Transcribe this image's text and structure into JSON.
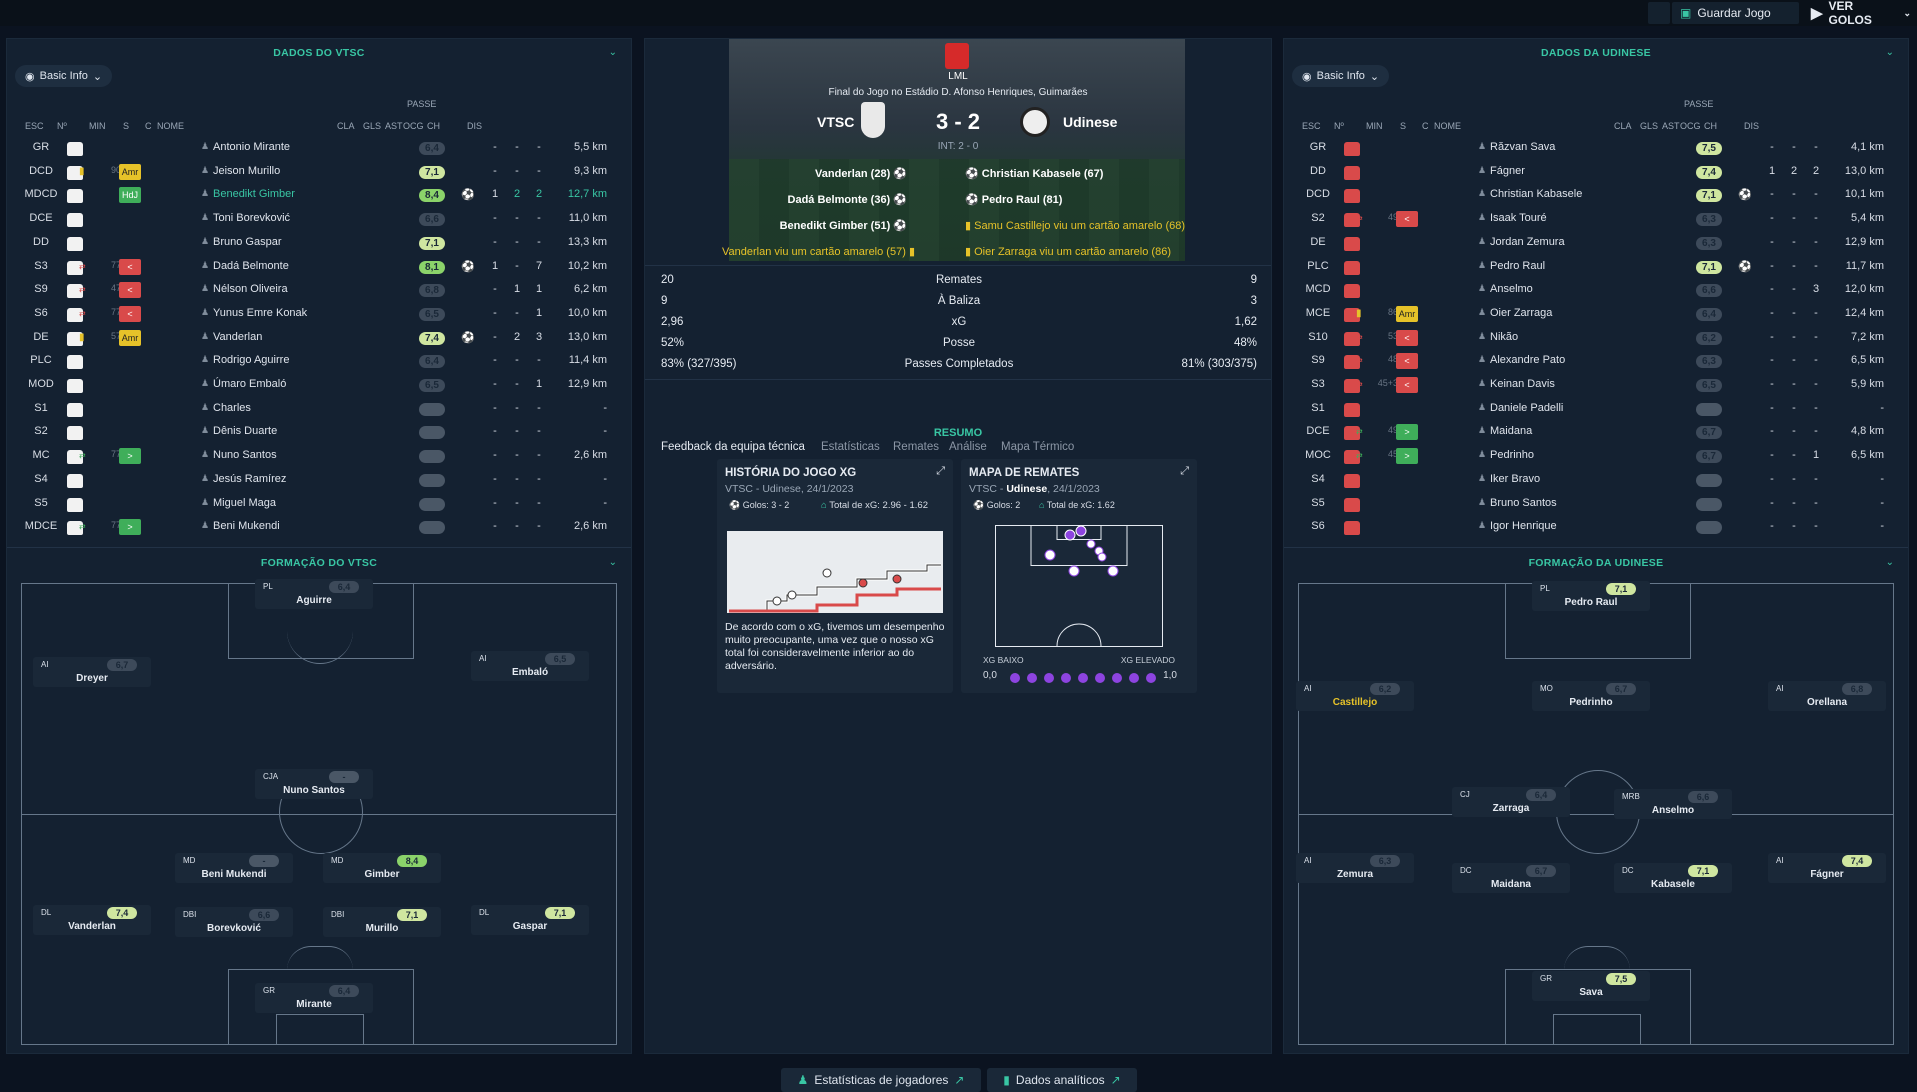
{
  "topbar": {
    "save_label": "Guardar Jogo",
    "goals_label": "VER GOLOS"
  },
  "left": {
    "title": "DADOS DO VTSC",
    "basic": "Basic Info",
    "headers": {
      "esc": "ESC",
      "num": "Nº",
      "min": "MIN",
      "s": "S",
      "c": "C",
      "nome": "NOME",
      "passe": "PASSE",
      "cla": "CLA",
      "gls": "GLS",
      "ast": "AST",
      "ocg": "OCG",
      "ch": "CH",
      "dis": "DIS"
    },
    "players": [
      {
        "pos": "GR",
        "num": "",
        "min": "",
        "badge": "",
        "name": "Antonio Mirante",
        "rating": "6,4",
        "gls": "",
        "ast": "-",
        "ocg": "-",
        "ch": "-",
        "dis": "5,5 km"
      },
      {
        "pos": "DCD",
        "num": "",
        "min": "90",
        "badge": "Amr",
        "name": "Jeison Murillo",
        "rating": "7,1",
        "gls": "",
        "ast": "-",
        "ocg": "-",
        "ch": "-",
        "dis": "9,3 km"
      },
      {
        "pos": "MDCD",
        "num": "",
        "min": "",
        "badge": "HdJ",
        "name": "Benedikt Gimber",
        "rating": "8,4",
        "gls": "⚽",
        "ast": "1",
        "ocg": "2",
        "ch": "2",
        "dis": "12,7 km"
      },
      {
        "pos": "DCE",
        "num": "",
        "min": "",
        "badge": "",
        "name": "Toni Borevković",
        "rating": "6,6",
        "gls": "",
        "ast": "-",
        "ocg": "-",
        "ch": "-",
        "dis": "11,0 km"
      },
      {
        "pos": "DD",
        "num": "",
        "min": "",
        "badge": "",
        "name": "Bruno Gaspar",
        "rating": "7,1",
        "gls": "",
        "ast": "-",
        "ocg": "-",
        "ch": "-",
        "dis": "13,3 km"
      },
      {
        "pos": "S3",
        "num": "",
        "min": "77",
        "badge": "<",
        "name": "Dadá Belmonte",
        "rating": "8,1",
        "gls": "⚽",
        "ast": "1",
        "ocg": "-",
        "ch": "7",
        "dis": "10,2 km"
      },
      {
        "pos": "S9",
        "num": "",
        "min": "47",
        "badge": "<",
        "name": "Nélson Oliveira",
        "rating": "6,8",
        "gls": "",
        "ast": "-",
        "ocg": "1",
        "ch": "1",
        "dis": "6,2 km"
      },
      {
        "pos": "S6",
        "num": "",
        "min": "77",
        "badge": "<",
        "name": "Yunus Emre Konak",
        "rating": "6,5",
        "gls": "",
        "ast": "-",
        "ocg": "-",
        "ch": "1",
        "dis": "10,0 km"
      },
      {
        "pos": "DE",
        "num": "",
        "min": "57",
        "badge": "Amr",
        "name": "Vanderlan",
        "rating": "7,4",
        "gls": "⚽",
        "ast": "-",
        "ocg": "2",
        "ch": "3",
        "dis": "13,0 km"
      },
      {
        "pos": "PLC",
        "num": "",
        "min": "",
        "badge": "",
        "name": "Rodrigo Aguirre",
        "rating": "6,4",
        "gls": "",
        "ast": "-",
        "ocg": "-",
        "ch": "-",
        "dis": "11,4 km"
      },
      {
        "pos": "MOD",
        "num": "",
        "min": "",
        "badge": "",
        "name": "Úmaro Embaló",
        "rating": "6,5",
        "gls": "",
        "ast": "-",
        "ocg": "-",
        "ch": "1",
        "dis": "12,9 km"
      },
      {
        "pos": "S1",
        "num": "",
        "min": "",
        "badge": "",
        "name": "Charles",
        "rating": "-",
        "gls": "",
        "ast": "-",
        "ocg": "-",
        "ch": "-",
        "dis": "-"
      },
      {
        "pos": "S2",
        "num": "",
        "min": "",
        "badge": "",
        "name": "Dênis Duarte",
        "rating": "-",
        "gls": "",
        "ast": "-",
        "ocg": "-",
        "ch": "-",
        "dis": "-"
      },
      {
        "pos": "MC",
        "num": "",
        "min": "77",
        "badge": ">",
        "name": "Nuno Santos",
        "rating": "-",
        "gls": "",
        "ast": "-",
        "ocg": "-",
        "ch": "-",
        "dis": "2,6 km"
      },
      {
        "pos": "S4",
        "num": "",
        "min": "",
        "badge": "",
        "name": "Jesús Ramírez",
        "rating": "-",
        "gls": "",
        "ast": "-",
        "ocg": "-",
        "ch": "-",
        "dis": "-"
      },
      {
        "pos": "S5",
        "num": "",
        "min": "",
        "badge": "",
        "name": "Miguel Maga",
        "rating": "-",
        "gls": "",
        "ast": "-",
        "ocg": "-",
        "ch": "-",
        "dis": "-"
      },
      {
        "pos": "MDCE",
        "num": "",
        "min": "77",
        "badge": ">",
        "name": "Beni Mukendi",
        "rating": "-",
        "gls": "",
        "ast": "-",
        "ocg": "-",
        "ch": "-",
        "dis": "2,6 km"
      }
    ],
    "formation_title": "FORMAÇÃO DO VTSC",
    "formation": [
      {
        "pos": "PL",
        "rating": "6,4",
        "name": "Aguirre"
      },
      {
        "pos": "AI",
        "rating": "6,7",
        "name": "Dreyer"
      },
      {
        "pos": "AI",
        "rating": "6,5",
        "name": "Embaló"
      },
      {
        "pos": "CJA",
        "rating": "-",
        "name": "Nuno Santos"
      },
      {
        "pos": "MD",
        "rating": "-",
        "name": "Beni Mukendi"
      },
      {
        "pos": "MD",
        "rating": "8,4",
        "name": "Gimber"
      },
      {
        "pos": "DL",
        "rating": "7,4",
        "name": "Vanderlan"
      },
      {
        "pos": "DBI",
        "rating": "6,6",
        "name": "Borevković"
      },
      {
        "pos": "DBI",
        "rating": "7,1",
        "name": "Murillo"
      },
      {
        "pos": "DL",
        "rating": "7,1",
        "name": "Gaspar"
      },
      {
        "pos": "GR",
        "rating": "6,4",
        "name": "Mirante"
      }
    ]
  },
  "center": {
    "league": "LML",
    "venue": "Final do Jogo no Estádio D. Afonso Henriques, Guimarães",
    "home": "VTSC",
    "away": "Udinese",
    "score": "3 - 2",
    "ht": "INT: 2 - 0",
    "home_events": [
      "Vanderlan (28)",
      "Dadá Belmonte (36)",
      "Benedikt Gimber (51)",
      "Vanderlan viu um cartão amarelo (57)"
    ],
    "away_events": [
      "Christian Kabasele (67)",
      "Pedro Raul (81)",
      "Samu Castillejo viu um cartão amarelo (68)",
      "Oier Zarraga viu um cartão amarelo (86)"
    ],
    "stats": [
      {
        "home": "20",
        "label": "Remates",
        "away": "9"
      },
      {
        "home": "9",
        "label": "À Baliza",
        "away": "3"
      },
      {
        "home": "2,96",
        "label": "xG",
        "away": "1,62"
      },
      {
        "home": "52%",
        "label": "Posse",
        "away": "48%"
      },
      {
        "home": "83% (327/395)",
        "label": "Passes Completados",
        "away": "81% (303/375)"
      }
    ],
    "tabs": [
      "Feedback da equipa técnica",
      "Estatísticas",
      "Remates",
      "Análise",
      "Mapa Térmico"
    ],
    "resumo": "RESUMO",
    "xg_card": {
      "title": "HISTÓRIA DO JOGO XG",
      "sub": "VTSC - Udinese, 24/1/2023",
      "goals": "Golos: 3 - 2",
      "total": "Total de xG: 2.96 - 1.62",
      "text": "De acordo com o xG, tivemos um desempenho muito preocupante, uma vez que o nosso xG total foi consideravelmente inferior ao do adversário."
    },
    "shot_card": {
      "title": "MAPA DE REMATES",
      "sub_a": "VTSC - ",
      "sub_b": "Udinese",
      "sub_c": ", 24/1/2023",
      "goals": "Golos: 2",
      "total": "Total de xG: 1.62",
      "low": "XG BAIXO",
      "high": "XG ELEVADO",
      "min": "0,0",
      "max": "1,0"
    },
    "bottom": [
      "Estatísticas de jogadores",
      "Dados analíticos"
    ]
  },
  "right": {
    "title": "DADOS DA UDINESE",
    "basic": "Basic Info",
    "players": [
      {
        "pos": "GR",
        "min": "",
        "badge": "",
        "name": "Răzvan Sava",
        "rating": "7,5",
        "gls": "",
        "ast": "-",
        "ocg": "-",
        "ch": "-",
        "dis": "4,1 km"
      },
      {
        "pos": "DD",
        "min": "",
        "badge": "",
        "name": "Fágner",
        "rating": "7,4",
        "gls": "",
        "ast": "1",
        "ocg": "2",
        "ch": "2",
        "dis": "13,0 km"
      },
      {
        "pos": "DCD",
        "min": "",
        "badge": "",
        "name": "Christian Kabasele",
        "rating": "7,1",
        "gls": "⚽",
        "ast": "-",
        "ocg": "-",
        "ch": "-",
        "dis": "10,1 km"
      },
      {
        "pos": "S2",
        "min": "49",
        "badge": "<",
        "name": "Isaak Touré",
        "rating": "6,3",
        "gls": "",
        "ast": "-",
        "ocg": "-",
        "ch": "-",
        "dis": "5,4 km"
      },
      {
        "pos": "DE",
        "min": "",
        "badge": "",
        "name": "Jordan Zemura",
        "rating": "6,3",
        "gls": "",
        "ast": "-",
        "ocg": "-",
        "ch": "-",
        "dis": "12,9 km"
      },
      {
        "pos": "PLC",
        "min": "",
        "badge": "",
        "name": "Pedro Raul",
        "rating": "7,1",
        "gls": "⚽",
        "ast": "-",
        "ocg": "-",
        "ch": "-",
        "dis": "11,7 km"
      },
      {
        "pos": "MCD",
        "min": "",
        "badge": "",
        "name": "Anselmo",
        "rating": "6,6",
        "gls": "",
        "ast": "-",
        "ocg": "-",
        "ch": "3",
        "dis": "12,0 km"
      },
      {
        "pos": "MCE",
        "min": "86",
        "badge": "Amr",
        "name": "Oier Zarraga",
        "rating": "6,4",
        "gls": "",
        "ast": "-",
        "ocg": "-",
        "ch": "-",
        "dis": "12,4 km"
      },
      {
        "pos": "S10",
        "min": "53",
        "badge": "<",
        "name": "Nikão",
        "rating": "6,2",
        "gls": "",
        "ast": "-",
        "ocg": "-",
        "ch": "-",
        "dis": "7,2 km"
      },
      {
        "pos": "S9",
        "min": "48",
        "badge": "<",
        "name": "Alexandre Pato",
        "rating": "6,3",
        "gls": "",
        "ast": "-",
        "ocg": "-",
        "ch": "-",
        "dis": "6,5 km"
      },
      {
        "pos": "S3",
        "min": "45+3",
        "badge": "<",
        "name": "Keinan Davis",
        "rating": "6,5",
        "gls": "",
        "ast": "-",
        "ocg": "-",
        "ch": "-",
        "dis": "5,9 km"
      },
      {
        "pos": "S1",
        "min": "",
        "badge": "",
        "name": "Daniele Padelli",
        "rating": "-",
        "gls": "",
        "ast": "-",
        "ocg": "-",
        "ch": "-",
        "dis": "-"
      },
      {
        "pos": "DCE",
        "min": "49",
        "badge": ">",
        "name": "Maidana",
        "rating": "6,7",
        "gls": "",
        "ast": "-",
        "ocg": "-",
        "ch": "-",
        "dis": "4,8 km"
      },
      {
        "pos": "MOC",
        "min": "45",
        "badge": ">",
        "name": "Pedrinho",
        "rating": "6,7",
        "gls": "",
        "ast": "-",
        "ocg": "-",
        "ch": "1",
        "dis": "6,5 km"
      },
      {
        "pos": "S4",
        "min": "",
        "badge": "",
        "name": "Iker Bravo",
        "rating": "-",
        "gls": "",
        "ast": "-",
        "ocg": "-",
        "ch": "-",
        "dis": "-"
      },
      {
        "pos": "S5",
        "min": "",
        "badge": "",
        "name": "Bruno Santos",
        "rating": "-",
        "gls": "",
        "ast": "-",
        "ocg": "-",
        "ch": "-",
        "dis": "-"
      },
      {
        "pos": "S6",
        "min": "",
        "badge": "",
        "name": "Igor Henrique",
        "rating": "-",
        "gls": "",
        "ast": "-",
        "ocg": "-",
        "ch": "-",
        "dis": "-"
      }
    ],
    "formation_title": "FORMAÇÃO DA UDINESE",
    "formation": [
      {
        "pos": "PL",
        "rating": "7,1",
        "name": "Pedro Raul"
      },
      {
        "pos": "AI",
        "rating": "6,2",
        "name": "Castillejo"
      },
      {
        "pos": "MO",
        "rating": "6,7",
        "name": "Pedrinho"
      },
      {
        "pos": "AI",
        "rating": "6,8",
        "name": "Orellana"
      },
      {
        "pos": "CJ",
        "rating": "6,4",
        "name": "Zarraga"
      },
      {
        "pos": "MRB",
        "rating": "6,6",
        "name": "Anselmo"
      },
      {
        "pos": "AI",
        "rating": "6,3",
        "name": "Zemura"
      },
      {
        "pos": "DC",
        "rating": "6,7",
        "name": "Maidana"
      },
      {
        "pos": "DC",
        "rating": "7,1",
        "name": "Kabasele"
      },
      {
        "pos": "AI",
        "rating": "7,4",
        "name": "Fágner"
      },
      {
        "pos": "GR",
        "rating": "7,5",
        "name": "Sava"
      }
    ]
  },
  "colors": {
    "accent": "#39c6a4",
    "rating_high": "#8bd36a",
    "rating_mid": "#cfe6a0",
    "rating_low": "#4a5766",
    "yellow": "#e6c229",
    "red": "#d94a4a",
    "green": "#3fae5a"
  }
}
